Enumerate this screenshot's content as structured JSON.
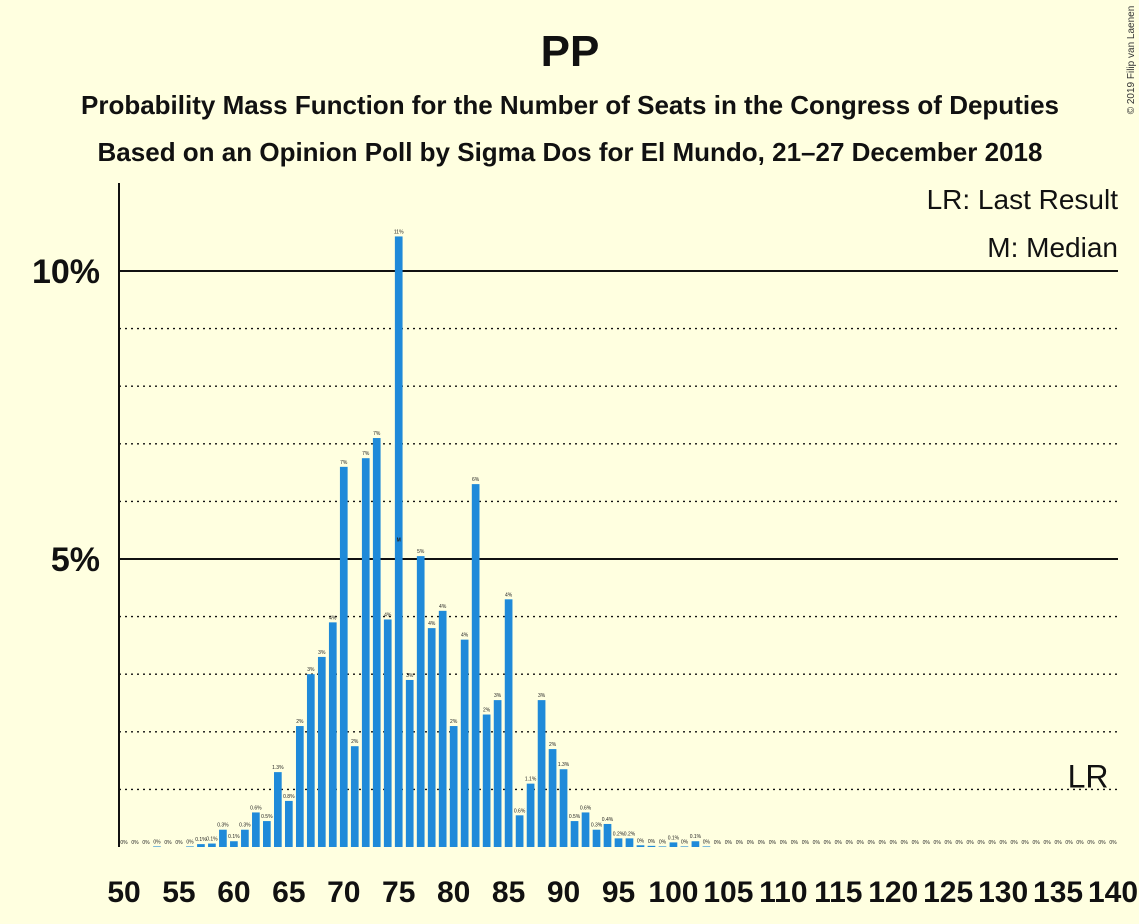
{
  "chart_data": {
    "type": "bar",
    "title": "PP",
    "subtitle": "Probability Mass Function for the Number of Seats in the Congress of Deputies",
    "subtitle2": "Based on an Opinion Poll by Sigma Dos for El Mundo, 21–27 December 2018",
    "copyright": "© 2019 Filip van Laenen",
    "legend": {
      "lr": "LR: Last Result",
      "median": "M: Median",
      "placement": "top-right"
    },
    "y_ticks": [
      {
        "value": 10,
        "label": "10%"
      },
      {
        "value": 5,
        "label": "5%"
      }
    ],
    "x_ticks": [
      50,
      55,
      60,
      65,
      70,
      75,
      80,
      85,
      90,
      95,
      100,
      105,
      110,
      115,
      120,
      125,
      130,
      135,
      140
    ],
    "xlim": [
      50,
      140
    ],
    "ylim": [
      0,
      11.5
    ],
    "median_seat": 75,
    "median_marker": "M",
    "last_result_seat": 137,
    "last_result_marker": "LR",
    "color": "#1f8ad9",
    "seats": [
      50,
      51,
      52,
      53,
      54,
      55,
      56,
      57,
      58,
      59,
      60,
      61,
      62,
      63,
      64,
      65,
      66,
      67,
      68,
      69,
      70,
      71,
      72,
      73,
      74,
      75,
      76,
      77,
      78,
      79,
      80,
      81,
      82,
      83,
      84,
      85,
      86,
      87,
      88,
      89,
      90,
      91,
      92,
      93,
      94,
      95,
      96,
      97,
      98,
      99,
      100,
      101,
      102,
      103,
      104,
      105,
      106,
      107,
      108,
      109,
      110,
      111,
      112,
      113,
      114,
      115,
      116,
      117,
      118,
      119,
      120,
      121,
      122,
      123,
      124,
      125,
      126,
      127,
      128,
      129,
      130,
      131,
      132,
      133,
      134,
      135,
      136,
      137,
      138,
      139,
      140
    ],
    "values": [
      0,
      0,
      0,
      0.01,
      0,
      0,
      0.01,
      0.05,
      0.06,
      0.3,
      0.1,
      0.3,
      0.6,
      0.45,
      1.3,
      0.8,
      2.1,
      3.0,
      3.3,
      3.9,
      6.6,
      1.75,
      6.75,
      7.1,
      3.95,
      10.6,
      2.9,
      5.05,
      3.8,
      4.1,
      2.1,
      3.6,
      6.3,
      2.3,
      2.55,
      4.3,
      0.55,
      1.1,
      2.55,
      1.7,
      1.35,
      0.45,
      0.6,
      0.3,
      0.4,
      0.15,
      0.15,
      0.03,
      0.02,
      0.01,
      0.08,
      0.01,
      0.1,
      0.01,
      0,
      0,
      0,
      0,
      0,
      0,
      0,
      0,
      0,
      0,
      0,
      0,
      0,
      0,
      0,
      0,
      0,
      0,
      0,
      0,
      0,
      0,
      0,
      0,
      0,
      0,
      0,
      0,
      0,
      0,
      0,
      0,
      0,
      0,
      0,
      0,
      0
    ],
    "labels": [
      "0%",
      "0%",
      "0%",
      "0%",
      "0%",
      "0%",
      "0%",
      "0.1%",
      "0.1%",
      "0.3%",
      "0.1%",
      "0.3%",
      "0.6%",
      "0.5%",
      "1.3%",
      "0.8%",
      "2%",
      "3%",
      "3%",
      "4%",
      "7%",
      "2%",
      "7%",
      "7%",
      "4%",
      "11%",
      "3%",
      "5%",
      "4%",
      "4%",
      "2%",
      "4%",
      "6%",
      "2%",
      "3%",
      "4%",
      "0.6%",
      "1.1%",
      "3%",
      "2%",
      "1.3%",
      "0.5%",
      "0.6%",
      "0.3%",
      "0.4%",
      "0.2%",
      "0.2%",
      "0%",
      "0%",
      "0%",
      "0.1%",
      "0%",
      "0.1%",
      "0%",
      "0%",
      "0%",
      "0%",
      "0%",
      "0%",
      "0%",
      "0%",
      "0%",
      "0%",
      "0%",
      "0%",
      "0%",
      "0%",
      "0%",
      "0%",
      "0%",
      "0%",
      "0%",
      "0%",
      "0%",
      "0%",
      "0%",
      "0%",
      "0%",
      "0%",
      "0%",
      "0%",
      "0%",
      "0%",
      "0%",
      "0%",
      "0%",
      "0%",
      "0%",
      "0%",
      "0%",
      "0%"
    ]
  }
}
